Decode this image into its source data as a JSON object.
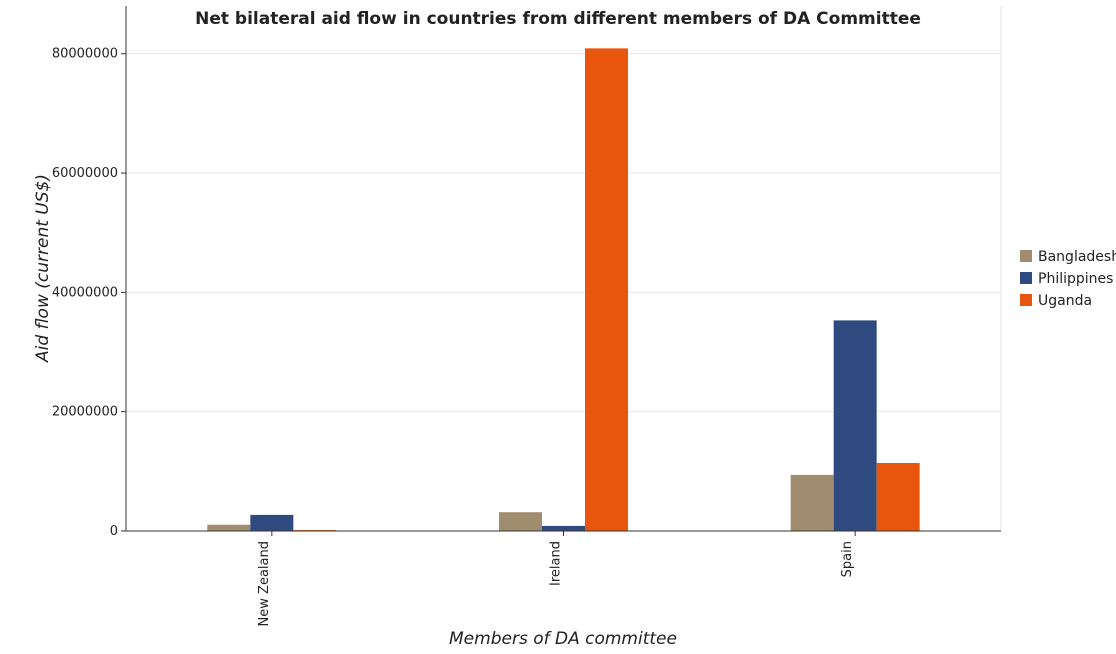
{
  "chart_data": {
    "type": "bar",
    "title": "Net bilateral aid flow in countries from different members of DA Committee",
    "xlabel": "Members of DA committee",
    "ylabel": "Aid flow (current US$)",
    "categories": [
      "New Zealand",
      "Ireland",
      "Spain"
    ],
    "ylim": [
      0,
      88000000
    ],
    "yticks": [
      0,
      20000000,
      40000000,
      60000000,
      80000000
    ],
    "ytick_labels": [
      "0",
      "20000000",
      "40000000",
      "60000000",
      "80000000"
    ],
    "grid": true,
    "legend_position": "right",
    "series": [
      {
        "name": "Bangladesh",
        "color": "#a08c6e",
        "values": [
          1050000,
          3150000,
          9400000
        ]
      },
      {
        "name": "Philippines",
        "color": "#2e4a7e",
        "values": [
          2700000,
          850000,
          35300000
        ]
      },
      {
        "name": "Uganda",
        "color": "#e8550d",
        "values": [
          150000,
          80900000,
          11400000
        ]
      }
    ]
  }
}
